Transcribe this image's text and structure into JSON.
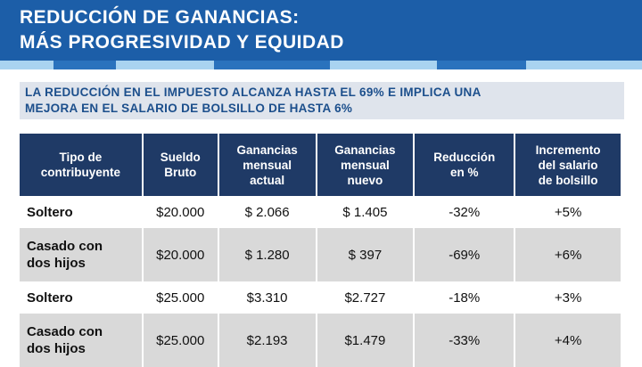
{
  "header": {
    "title": [
      "REDUCCIÓN DE GANANCIAS:",
      "MÁS PROGRESIVIDAD  Y EQUIDAD"
    ]
  },
  "subtitle": [
    "LA REDUCCIÓN EN EL IMPUESTO ALCANZA HASTA EL 69% E IMPLICA UNA",
    "MEJORA EN EL SALARIO DE BOLSILLO DE HASTA 6%"
  ],
  "table": {
    "columns": [
      [
        "Tipo de",
        "contribuyente"
      ],
      [
        "Sueldo",
        "Bruto"
      ],
      [
        "Ganancias",
        "mensual",
        "actual"
      ],
      [
        "Ganancias",
        "mensual",
        "nuevo"
      ],
      [
        "Reducción",
        "en %"
      ],
      [
        "Incremento",
        "del salario",
        "de bolsillo"
      ]
    ],
    "rows": [
      [
        [
          "Soltero"
        ],
        "$20.000",
        "$ 2.066",
        "$ 1.405",
        "-32%",
        "+5%"
      ],
      [
        [
          "Casado con",
          "dos hijos"
        ],
        "$20.000",
        "$ 1.280",
        "$ 397",
        "-69%",
        "+6%"
      ],
      [
        [
          "Soltero"
        ],
        "$25.000",
        "$3.310",
        "$2.727",
        "-18%",
        "+3%"
      ],
      [
        [
          "Casado con",
          "dos hijos"
        ],
        "$25.000",
        "$2.193",
        "$1.479",
        "-33%",
        "+4%"
      ]
    ]
  }
}
